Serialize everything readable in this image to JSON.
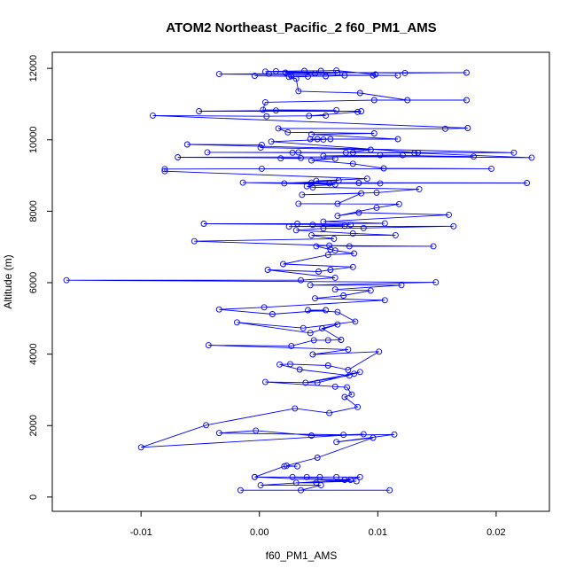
{
  "chart_data": {
    "type": "line",
    "title": "ATOM2 Northeast_Pacific_2 f60_PM1_AMS",
    "xlabel": "f60_PM1_AMS",
    "ylabel": "Altitude (m)",
    "xlim": [
      -0.0175,
      0.0245
    ],
    "ylim": [
      -400,
      12450
    ],
    "xticks": [
      -0.01,
      0.0,
      0.01,
      0.02
    ],
    "xtick_labels": [
      "-0.01",
      "0.00",
      "0.01",
      "0.02"
    ],
    "yticks": [
      0,
      2000,
      4000,
      6000,
      8000,
      10000,
      12000
    ],
    "ytick_labels": [
      "0",
      "2000",
      "4000",
      "6000",
      "8000",
      "10000",
      "12000"
    ],
    "grid": false,
    "series": [
      {
        "color": "#0000ff",
        "marker": "open-circle",
        "points": [
          [
            -0.0016,
            190
          ],
          [
            0.011,
            190
          ],
          [
            0.0035,
            190
          ],
          [
            0.0052,
            330
          ],
          [
            0.0001,
            330
          ],
          [
            0.0072,
            480
          ],
          [
            0.0085,
            560
          ],
          [
            0.0065,
            560
          ],
          [
            0.0051,
            560
          ],
          [
            -0.0004,
            560
          ],
          [
            0.004,
            560
          ],
          [
            0.0028,
            560
          ],
          [
            0.0077,
            480
          ],
          [
            0.0048,
            400
          ],
          [
            0.0031,
            400
          ],
          [
            0.0082,
            440
          ],
          [
            -0.0004,
            560
          ],
          [
            0.0021,
            860
          ],
          [
            0.0032,
            860
          ],
          [
            0.0023,
            880
          ],
          [
            0.0049,
            1100
          ],
          [
            0.0096,
            1660
          ],
          [
            0.0065,
            1540
          ],
          [
            0.0114,
            1750
          ],
          [
            0.0044,
            1720
          ],
          [
            -0.0003,
            1860
          ],
          [
            -0.0034,
            1790
          ],
          [
            0.0071,
            1740
          ],
          [
            0.0088,
            1760
          ],
          [
            -0.01,
            1390
          ],
          [
            -0.0045,
            2010
          ],
          [
            0.003,
            2480
          ],
          [
            0.0059,
            2350
          ],
          [
            0.0083,
            2520
          ],
          [
            0.0072,
            2800
          ],
          [
            0.0078,
            2870
          ],
          [
            0.0074,
            3070
          ],
          [
            0.0064,
            3090
          ],
          [
            0.0005,
            3220
          ],
          [
            0.0049,
            3200
          ],
          [
            0.008,
            3450
          ],
          [
            0.0085,
            3500
          ],
          [
            0.0039,
            3200
          ],
          [
            0.0076,
            3400
          ],
          [
            0.0034,
            3570
          ],
          [
            0.0017,
            3710
          ],
          [
            0.0026,
            3720
          ],
          [
            0.0058,
            3680
          ],
          [
            0.0075,
            3560
          ],
          [
            0.0101,
            4070
          ],
          [
            0.0045,
            3990
          ],
          [
            0.0075,
            4130
          ],
          [
            -0.0043,
            4250
          ],
          [
            0.0027,
            4230
          ],
          [
            0.0046,
            4390
          ],
          [
            0.0058,
            4390
          ],
          [
            0.0069,
            4400
          ],
          [
            0.0053,
            4720
          ],
          [
            0.0066,
            4830
          ],
          [
            0.0043,
            4590
          ],
          [
            -0.0019,
            4890
          ],
          [
            0.0037,
            4730
          ],
          [
            0.0081,
            4910
          ],
          [
            0.0066,
            5180
          ],
          [
            0.0041,
            5230
          ],
          [
            0.0056,
            5230
          ],
          [
            0.0011,
            5120
          ],
          [
            -0.0034,
            5250
          ],
          [
            0.0004,
            5310
          ],
          [
            0.0106,
            5510
          ],
          [
            0.0047,
            5560
          ],
          [
            0.0071,
            5640
          ],
          [
            0.0094,
            5780
          ],
          [
            0.0064,
            5810
          ],
          [
            0.012,
            5930
          ],
          [
            0.0043,
            5930
          ],
          [
            0.0149,
            6010
          ],
          [
            -0.0163,
            6070
          ],
          [
            0.0035,
            6070
          ],
          [
            0.0064,
            6140
          ],
          [
            0.0007,
            6360
          ],
          [
            0.005,
            6310
          ],
          [
            0.006,
            6360
          ],
          [
            0.0079,
            6440
          ],
          [
            0.002,
            6520
          ],
          [
            0.0058,
            6780
          ],
          [
            0.008,
            6820
          ],
          [
            0.0064,
            6900
          ],
          [
            0.006,
            6930
          ],
          [
            0.0048,
            7020
          ],
          [
            0.0059,
            7040
          ],
          [
            0.0147,
            7020
          ],
          [
            0.0076,
            7020
          ],
          [
            -0.0055,
            7160
          ],
          [
            0.0063,
            7230
          ],
          [
            0.0044,
            7330
          ],
          [
            0.0115,
            7330
          ],
          [
            0.0079,
            7380
          ],
          [
            0.0031,
            7470
          ],
          [
            0.0054,
            7520
          ],
          [
            0.0088,
            7530
          ],
          [
            0.0164,
            7580
          ],
          [
            0.0025,
            7570
          ],
          [
            0.0072,
            7590
          ],
          [
            0.0045,
            7620
          ],
          [
            0.0077,
            7620
          ],
          [
            -0.0047,
            7650
          ],
          [
            0.0032,
            7650
          ],
          [
            0.0106,
            7660
          ],
          [
            0.0054,
            7710
          ],
          [
            0.016,
            7900
          ],
          [
            0.0084,
            7960
          ],
          [
            0.0066,
            7870
          ],
          [
            0.0099,
            8100
          ],
          [
            0.0118,
            8200
          ],
          [
            0.0033,
            8210
          ],
          [
            0.0066,
            8210
          ],
          [
            0.0086,
            8500
          ],
          [
            0.0036,
            8460
          ],
          [
            0.0099,
            8520
          ],
          [
            0.0135,
            8620
          ],
          [
            0.0045,
            8670
          ],
          [
            0.004,
            8700
          ],
          [
            0.0064,
            8750
          ],
          [
            -0.0014,
            8800
          ],
          [
            0.0084,
            8790
          ],
          [
            0.0226,
            8790
          ],
          [
            0.0044,
            8800
          ],
          [
            0.0059,
            8780
          ],
          [
            0.0102,
            8780
          ],
          [
            0.0021,
            8780
          ],
          [
            0.0067,
            8860
          ],
          [
            0.0048,
            8850
          ],
          [
            0.0091,
            8910
          ],
          [
            -0.008,
            9120
          ],
          [
            -0.008,
            9180
          ],
          [
            0.0002,
            9190
          ],
          [
            0.0196,
            9190
          ],
          [
            0.0105,
            9200
          ],
          [
            0.0079,
            9330
          ],
          [
            0.0044,
            9420
          ],
          [
            0.0064,
            9470
          ],
          [
            0.0018,
            9480
          ],
          [
            0.0035,
            9490
          ],
          [
            -0.0069,
            9510
          ],
          [
            0.0181,
            9530
          ],
          [
            0.0102,
            9570
          ],
          [
            0.0121,
            9570
          ],
          [
            0.0054,
            9550
          ],
          [
            0.023,
            9500
          ],
          [
            0.0131,
            9630
          ],
          [
            0.0033,
            9650
          ],
          [
            0.0073,
            9640
          ],
          [
            0.0094,
            9720
          ],
          [
            0.0001,
            9780
          ],
          [
            0.0002,
            9860
          ],
          [
            -0.0061,
            9870
          ],
          [
            0.0215,
            9640
          ],
          [
            -0.0044,
            9650
          ],
          [
            0.0028,
            9640
          ],
          [
            0.0079,
            9640
          ],
          [
            0.0134,
            9640
          ],
          [
            0.001,
            9950
          ],
          [
            0.0054,
            10010
          ],
          [
            0.006,
            10020
          ],
          [
            0.0049,
            10020
          ],
          [
            0.0043,
            10020
          ],
          [
            0.0117,
            10020
          ],
          [
            0.0044,
            10150
          ],
          [
            0.0097,
            10180
          ],
          [
            0.0024,
            10210
          ],
          [
            0.0016,
            10320
          ],
          [
            0.0157,
            10310
          ],
          [
            0.0176,
            10330
          ],
          [
            -0.009,
            10680
          ],
          [
            0.0006,
            10660
          ],
          [
            0.0056,
            10680
          ],
          [
            0.0042,
            10670
          ],
          [
            0.0083,
            10780
          ],
          [
            0.0086,
            10800
          ],
          [
            -0.0051,
            10800
          ],
          [
            0.0014,
            10820
          ],
          [
            0.0065,
            10830
          ],
          [
            0.0003,
            10840
          ],
          [
            0.0005,
            11050
          ],
          [
            0.0097,
            11110
          ],
          [
            0.0175,
            11110
          ],
          [
            0.0125,
            11110
          ],
          [
            0.0085,
            11310
          ],
          [
            0.0033,
            11360
          ],
          [
            0.0031,
            11710
          ],
          [
            0.0025,
            11760
          ],
          [
            0.0041,
            11770
          ],
          [
            -0.0004,
            11790
          ],
          [
            0.0027,
            11780
          ],
          [
            0.0056,
            11780
          ],
          [
            0.0072,
            11800
          ],
          [
            0.0096,
            11800
          ],
          [
            0.0117,
            11800
          ],
          [
            -0.0034,
            11840
          ],
          [
            0.0008,
            11850
          ],
          [
            0.0047,
            11860
          ],
          [
            0.0066,
            11870
          ],
          [
            0.0022,
            11880
          ],
          [
            0.0175,
            11880
          ],
          [
            0.0123,
            11870
          ],
          [
            0.0005,
            11910
          ],
          [
            0.0014,
            11920
          ],
          [
            0.0038,
            11930
          ],
          [
            0.0052,
            11930
          ],
          [
            0.0065,
            11940
          ],
          [
            0.0098,
            11830
          ]
        ]
      }
    ]
  }
}
